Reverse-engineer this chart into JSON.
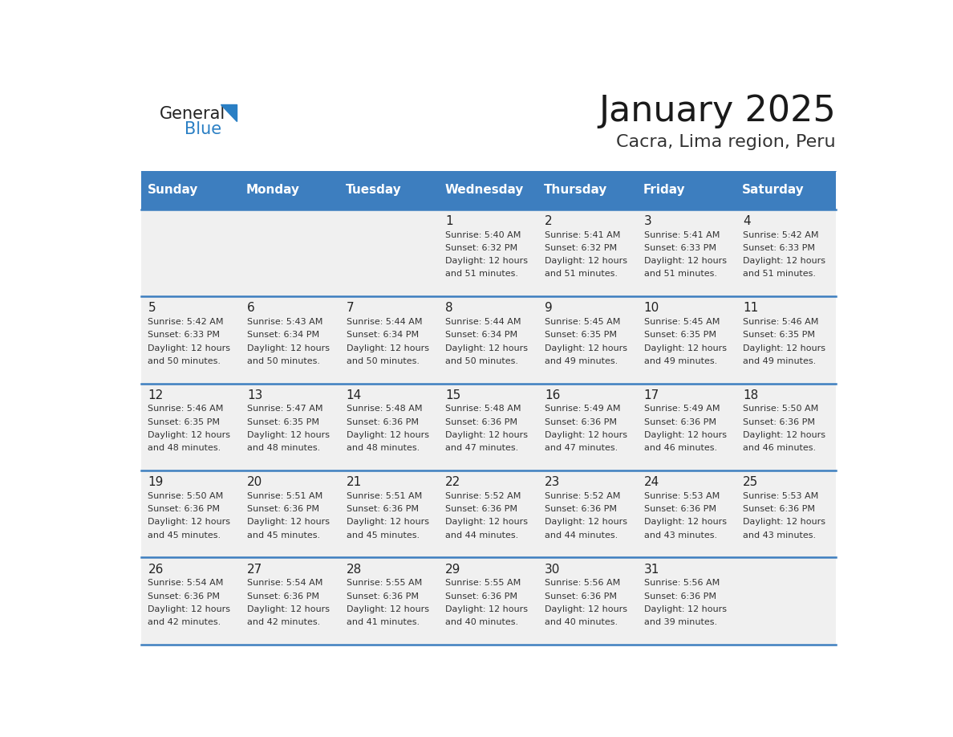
{
  "title": "January 2025",
  "subtitle": "Cacra, Lima region, Peru",
  "header_color": "#3d7ebf",
  "header_text_color": "#ffffff",
  "cell_bg_color": "#f0f0f0",
  "cell_text_color": "#333333",
  "day_number_color": "#222222",
  "border_color": "#3d7ebf",
  "days_of_week": [
    "Sunday",
    "Monday",
    "Tuesday",
    "Wednesday",
    "Thursday",
    "Friday",
    "Saturday"
  ],
  "weeks": [
    [
      {
        "day": "",
        "sunrise": "",
        "sunset": "",
        "daylight": ""
      },
      {
        "day": "",
        "sunrise": "",
        "sunset": "",
        "daylight": ""
      },
      {
        "day": "",
        "sunrise": "",
        "sunset": "",
        "daylight": ""
      },
      {
        "day": "1",
        "sunrise": "5:40 AM",
        "sunset": "6:32 PM",
        "daylight": "12 hours and 51 minutes."
      },
      {
        "day": "2",
        "sunrise": "5:41 AM",
        "sunset": "6:32 PM",
        "daylight": "12 hours and 51 minutes."
      },
      {
        "day": "3",
        "sunrise": "5:41 AM",
        "sunset": "6:33 PM",
        "daylight": "12 hours and 51 minutes."
      },
      {
        "day": "4",
        "sunrise": "5:42 AM",
        "sunset": "6:33 PM",
        "daylight": "12 hours and 51 minutes."
      }
    ],
    [
      {
        "day": "5",
        "sunrise": "5:42 AM",
        "sunset": "6:33 PM",
        "daylight": "12 hours and 50 minutes."
      },
      {
        "day": "6",
        "sunrise": "5:43 AM",
        "sunset": "6:34 PM",
        "daylight": "12 hours and 50 minutes."
      },
      {
        "day": "7",
        "sunrise": "5:44 AM",
        "sunset": "6:34 PM",
        "daylight": "12 hours and 50 minutes."
      },
      {
        "day": "8",
        "sunrise": "5:44 AM",
        "sunset": "6:34 PM",
        "daylight": "12 hours and 50 minutes."
      },
      {
        "day": "9",
        "sunrise": "5:45 AM",
        "sunset": "6:35 PM",
        "daylight": "12 hours and 49 minutes."
      },
      {
        "day": "10",
        "sunrise": "5:45 AM",
        "sunset": "6:35 PM",
        "daylight": "12 hours and 49 minutes."
      },
      {
        "day": "11",
        "sunrise": "5:46 AM",
        "sunset": "6:35 PM",
        "daylight": "12 hours and 49 minutes."
      }
    ],
    [
      {
        "day": "12",
        "sunrise": "5:46 AM",
        "sunset": "6:35 PM",
        "daylight": "12 hours and 48 minutes."
      },
      {
        "day": "13",
        "sunrise": "5:47 AM",
        "sunset": "6:35 PM",
        "daylight": "12 hours and 48 minutes."
      },
      {
        "day": "14",
        "sunrise": "5:48 AM",
        "sunset": "6:36 PM",
        "daylight": "12 hours and 48 minutes."
      },
      {
        "day": "15",
        "sunrise": "5:48 AM",
        "sunset": "6:36 PM",
        "daylight": "12 hours and 47 minutes."
      },
      {
        "day": "16",
        "sunrise": "5:49 AM",
        "sunset": "6:36 PM",
        "daylight": "12 hours and 47 minutes."
      },
      {
        "day": "17",
        "sunrise": "5:49 AM",
        "sunset": "6:36 PM",
        "daylight": "12 hours and 46 minutes."
      },
      {
        "day": "18",
        "sunrise": "5:50 AM",
        "sunset": "6:36 PM",
        "daylight": "12 hours and 46 minutes."
      }
    ],
    [
      {
        "day": "19",
        "sunrise": "5:50 AM",
        "sunset": "6:36 PM",
        "daylight": "12 hours and 45 minutes."
      },
      {
        "day": "20",
        "sunrise": "5:51 AM",
        "sunset": "6:36 PM",
        "daylight": "12 hours and 45 minutes."
      },
      {
        "day": "21",
        "sunrise": "5:51 AM",
        "sunset": "6:36 PM",
        "daylight": "12 hours and 45 minutes."
      },
      {
        "day": "22",
        "sunrise": "5:52 AM",
        "sunset": "6:36 PM",
        "daylight": "12 hours and 44 minutes."
      },
      {
        "day": "23",
        "sunrise": "5:52 AM",
        "sunset": "6:36 PM",
        "daylight": "12 hours and 44 minutes."
      },
      {
        "day": "24",
        "sunrise": "5:53 AM",
        "sunset": "6:36 PM",
        "daylight": "12 hours and 43 minutes."
      },
      {
        "day": "25",
        "sunrise": "5:53 AM",
        "sunset": "6:36 PM",
        "daylight": "12 hours and 43 minutes."
      }
    ],
    [
      {
        "day": "26",
        "sunrise": "5:54 AM",
        "sunset": "6:36 PM",
        "daylight": "12 hours and 42 minutes."
      },
      {
        "day": "27",
        "sunrise": "5:54 AM",
        "sunset": "6:36 PM",
        "daylight": "12 hours and 42 minutes."
      },
      {
        "day": "28",
        "sunrise": "5:55 AM",
        "sunset": "6:36 PM",
        "daylight": "12 hours and 41 minutes."
      },
      {
        "day": "29",
        "sunrise": "5:55 AM",
        "sunset": "6:36 PM",
        "daylight": "12 hours and 40 minutes."
      },
      {
        "day": "30",
        "sunrise": "5:56 AM",
        "sunset": "6:36 PM",
        "daylight": "12 hours and 40 minutes."
      },
      {
        "day": "31",
        "sunrise": "5:56 AM",
        "sunset": "6:36 PM",
        "daylight": "12 hours and 39 minutes."
      },
      {
        "day": "",
        "sunrise": "",
        "sunset": "",
        "daylight": ""
      }
    ]
  ],
  "logo_text1": "General",
  "logo_text2": "Blue",
  "logo_color1": "#222222",
  "logo_color2": "#2a7fc4",
  "logo_triangle_color": "#2a7fc4",
  "title_fontsize": 32,
  "subtitle_fontsize": 16,
  "header_fontsize": 11,
  "day_number_fontsize": 11,
  "cell_text_fontsize": 8
}
